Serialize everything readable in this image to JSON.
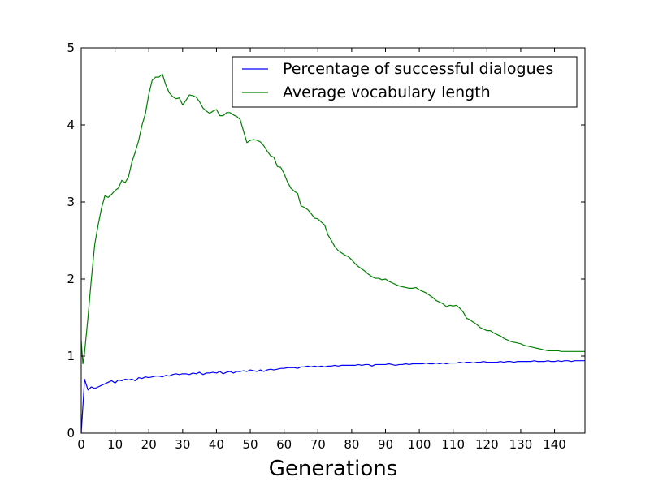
{
  "chart_data": {
    "type": "line",
    "title": "",
    "xlabel": "Generations",
    "ylabel": "",
    "xlim": [
      0,
      149
    ],
    "ylim": [
      0,
      5
    ],
    "x_ticks": [
      0,
      10,
      20,
      30,
      40,
      50,
      60,
      70,
      80,
      90,
      100,
      110,
      120,
      130,
      140
    ],
    "y_ticks": [
      0,
      1,
      2,
      3,
      4,
      5
    ],
    "grid": false,
    "legend_position": "top-right",
    "series": [
      {
        "name": "Percentage of successful dialogues",
        "color": "#0000ff",
        "points": [
          [
            0,
            0.0
          ],
          [
            1,
            0.7
          ],
          [
            2,
            0.56
          ],
          [
            3,
            0.6
          ],
          [
            4,
            0.58
          ],
          [
            5,
            0.6
          ],
          [
            6,
            0.62
          ],
          [
            7,
            0.64
          ],
          [
            8,
            0.66
          ],
          [
            9,
            0.68
          ],
          [
            10,
            0.65
          ],
          [
            11,
            0.69
          ],
          [
            12,
            0.68
          ],
          [
            13,
            0.7
          ],
          [
            14,
            0.69
          ],
          [
            15,
            0.7
          ],
          [
            16,
            0.68
          ],
          [
            17,
            0.72
          ],
          [
            18,
            0.71
          ],
          [
            19,
            0.73
          ],
          [
            20,
            0.72
          ],
          [
            21,
            0.73
          ],
          [
            22,
            0.74
          ],
          [
            23,
            0.74
          ],
          [
            24,
            0.73
          ],
          [
            25,
            0.75
          ],
          [
            26,
            0.74
          ],
          [
            27,
            0.76
          ],
          [
            28,
            0.77
          ],
          [
            29,
            0.76
          ],
          [
            30,
            0.77
          ],
          [
            31,
            0.77
          ],
          [
            32,
            0.76
          ],
          [
            33,
            0.78
          ],
          [
            34,
            0.77
          ],
          [
            35,
            0.79
          ],
          [
            36,
            0.76
          ],
          [
            37,
            0.78
          ],
          [
            38,
            0.78
          ],
          [
            39,
            0.79
          ],
          [
            40,
            0.78
          ],
          [
            41,
            0.8
          ],
          [
            42,
            0.77
          ],
          [
            43,
            0.79
          ],
          [
            44,
            0.8
          ],
          [
            45,
            0.78
          ],
          [
            46,
            0.8
          ],
          [
            47,
            0.8
          ],
          [
            48,
            0.81
          ],
          [
            49,
            0.8
          ],
          [
            50,
            0.82
          ],
          [
            51,
            0.81
          ],
          [
            52,
            0.8
          ],
          [
            53,
            0.82
          ],
          [
            54,
            0.8
          ],
          [
            55,
            0.82
          ],
          [
            56,
            0.83
          ],
          [
            57,
            0.82
          ],
          [
            58,
            0.83
          ],
          [
            59,
            0.84
          ],
          [
            60,
            0.84
          ],
          [
            61,
            0.85
          ],
          [
            62,
            0.85
          ],
          [
            63,
            0.85
          ],
          [
            64,
            0.84
          ],
          [
            65,
            0.86
          ],
          [
            66,
            0.86
          ],
          [
            67,
            0.87
          ],
          [
            68,
            0.86
          ],
          [
            69,
            0.87
          ],
          [
            70,
            0.86
          ],
          [
            71,
            0.87
          ],
          [
            72,
            0.86
          ],
          [
            73,
            0.87
          ],
          [
            74,
            0.87
          ],
          [
            75,
            0.88
          ],
          [
            76,
            0.87
          ],
          [
            77,
            0.88
          ],
          [
            78,
            0.88
          ],
          [
            79,
            0.88
          ],
          [
            80,
            0.88
          ],
          [
            81,
            0.88
          ],
          [
            82,
            0.89
          ],
          [
            83,
            0.88
          ],
          [
            84,
            0.89
          ],
          [
            85,
            0.89
          ],
          [
            86,
            0.87
          ],
          [
            87,
            0.89
          ],
          [
            88,
            0.89
          ],
          [
            89,
            0.89
          ],
          [
            90,
            0.89
          ],
          [
            91,
            0.9
          ],
          [
            92,
            0.89
          ],
          [
            93,
            0.88
          ],
          [
            94,
            0.89
          ],
          [
            95,
            0.89
          ],
          [
            96,
            0.9
          ],
          [
            97,
            0.89
          ],
          [
            98,
            0.9
          ],
          [
            99,
            0.9
          ],
          [
            100,
            0.9
          ],
          [
            101,
            0.9
          ],
          [
            102,
            0.91
          ],
          [
            103,
            0.9
          ],
          [
            104,
            0.9
          ],
          [
            105,
            0.91
          ],
          [
            106,
            0.9
          ],
          [
            107,
            0.91
          ],
          [
            108,
            0.9
          ],
          [
            109,
            0.91
          ],
          [
            110,
            0.91
          ],
          [
            111,
            0.91
          ],
          [
            112,
            0.92
          ],
          [
            113,
            0.91
          ],
          [
            114,
            0.92
          ],
          [
            115,
            0.92
          ],
          [
            116,
            0.91
          ],
          [
            117,
            0.92
          ],
          [
            118,
            0.92
          ],
          [
            119,
            0.93
          ],
          [
            120,
            0.92
          ],
          [
            121,
            0.92
          ],
          [
            122,
            0.92
          ],
          [
            123,
            0.92
          ],
          [
            124,
            0.93
          ],
          [
            125,
            0.92
          ],
          [
            126,
            0.93
          ],
          [
            127,
            0.93
          ],
          [
            128,
            0.92
          ],
          [
            129,
            0.93
          ],
          [
            130,
            0.93
          ],
          [
            131,
            0.93
          ],
          [
            132,
            0.93
          ],
          [
            133,
            0.93
          ],
          [
            134,
            0.94
          ],
          [
            135,
            0.93
          ],
          [
            136,
            0.93
          ],
          [
            137,
            0.93
          ],
          [
            138,
            0.94
          ],
          [
            139,
            0.93
          ],
          [
            140,
            0.93
          ],
          [
            141,
            0.94
          ],
          [
            142,
            0.93
          ],
          [
            143,
            0.94
          ],
          [
            144,
            0.94
          ],
          [
            145,
            0.93
          ],
          [
            146,
            0.94
          ],
          [
            147,
            0.94
          ],
          [
            148,
            0.94
          ],
          [
            149,
            0.94
          ]
        ]
      },
      {
        "name": "Average vocabulary length",
        "color": "#008000",
        "points": [
          [
            0,
            1.2
          ],
          [
            0.5,
            0.9
          ],
          [
            1,
            1.05
          ],
          [
            2,
            1.5
          ],
          [
            3,
            2.0
          ],
          [
            4,
            2.45
          ],
          [
            5,
            2.7
          ],
          [
            6,
            2.92
          ],
          [
            7,
            3.08
          ],
          [
            8,
            3.06
          ],
          [
            9,
            3.1
          ],
          [
            10,
            3.15
          ],
          [
            11,
            3.18
          ],
          [
            12,
            3.28
          ],
          [
            13,
            3.25
          ],
          [
            14,
            3.33
          ],
          [
            15,
            3.52
          ],
          [
            16,
            3.65
          ],
          [
            17,
            3.8
          ],
          [
            18,
            4.0
          ],
          [
            19,
            4.15
          ],
          [
            20,
            4.4
          ],
          [
            21,
            4.58
          ],
          [
            22,
            4.62
          ],
          [
            23,
            4.62
          ],
          [
            24,
            4.66
          ],
          [
            25,
            4.52
          ],
          [
            26,
            4.42
          ],
          [
            27,
            4.37
          ],
          [
            28,
            4.34
          ],
          [
            29,
            4.35
          ],
          [
            30,
            4.26
          ],
          [
            31,
            4.32
          ],
          [
            32,
            4.39
          ],
          [
            33,
            4.38
          ],
          [
            34,
            4.36
          ],
          [
            35,
            4.3
          ],
          [
            36,
            4.22
          ],
          [
            37,
            4.18
          ],
          [
            38,
            4.15
          ],
          [
            39,
            4.18
          ],
          [
            40,
            4.2
          ],
          [
            41,
            4.12
          ],
          [
            42,
            4.12
          ],
          [
            43,
            4.16
          ],
          [
            44,
            4.16
          ],
          [
            45,
            4.13
          ],
          [
            46,
            4.11
          ],
          [
            47,
            4.07
          ],
          [
            48,
            3.92
          ],
          [
            49,
            3.77
          ],
          [
            50,
            3.8
          ],
          [
            51,
            3.81
          ],
          [
            52,
            3.8
          ],
          [
            53,
            3.78
          ],
          [
            54,
            3.73
          ],
          [
            55,
            3.66
          ],
          [
            56,
            3.6
          ],
          [
            57,
            3.58
          ],
          [
            58,
            3.46
          ],
          [
            59,
            3.45
          ],
          [
            60,
            3.37
          ],
          [
            61,
            3.26
          ],
          [
            62,
            3.18
          ],
          [
            63,
            3.14
          ],
          [
            64,
            3.11
          ],
          [
            65,
            2.95
          ],
          [
            66,
            2.93
          ],
          [
            67,
            2.9
          ],
          [
            68,
            2.85
          ],
          [
            69,
            2.79
          ],
          [
            70,
            2.78
          ],
          [
            71,
            2.74
          ],
          [
            72,
            2.7
          ],
          [
            73,
            2.57
          ],
          [
            74,
            2.5
          ],
          [
            75,
            2.42
          ],
          [
            76,
            2.37
          ],
          [
            77,
            2.34
          ],
          [
            78,
            2.31
          ],
          [
            79,
            2.29
          ],
          [
            80,
            2.25
          ],
          [
            81,
            2.2
          ],
          [
            82,
            2.16
          ],
          [
            83,
            2.13
          ],
          [
            84,
            2.1
          ],
          [
            85,
            2.06
          ],
          [
            86,
            2.03
          ],
          [
            87,
            2.01
          ],
          [
            88,
            2.01
          ],
          [
            89,
            1.99
          ],
          [
            90,
            2.0
          ],
          [
            91,
            1.97
          ],
          [
            92,
            1.95
          ],
          [
            93,
            1.93
          ],
          [
            94,
            1.91
          ],
          [
            95,
            1.9
          ],
          [
            96,
            1.89
          ],
          [
            97,
            1.88
          ],
          [
            98,
            1.88
          ],
          [
            99,
            1.89
          ],
          [
            100,
            1.86
          ],
          [
            101,
            1.84
          ],
          [
            102,
            1.82
          ],
          [
            103,
            1.79
          ],
          [
            104,
            1.76
          ],
          [
            105,
            1.72
          ],
          [
            106,
            1.7
          ],
          [
            107,
            1.68
          ],
          [
            108,
            1.64
          ],
          [
            109,
            1.66
          ],
          [
            110,
            1.65
          ],
          [
            111,
            1.66
          ],
          [
            112,
            1.62
          ],
          [
            113,
            1.57
          ],
          [
            114,
            1.49
          ],
          [
            115,
            1.47
          ],
          [
            116,
            1.44
          ],
          [
            117,
            1.41
          ],
          [
            118,
            1.37
          ],
          [
            119,
            1.35
          ],
          [
            120,
            1.33
          ],
          [
            121,
            1.33
          ],
          [
            122,
            1.3
          ],
          [
            123,
            1.28
          ],
          [
            124,
            1.26
          ],
          [
            125,
            1.23
          ],
          [
            126,
            1.21
          ],
          [
            127,
            1.19
          ],
          [
            128,
            1.18
          ],
          [
            129,
            1.17
          ],
          [
            130,
            1.16
          ],
          [
            131,
            1.14
          ],
          [
            132,
            1.13
          ],
          [
            133,
            1.12
          ],
          [
            134,
            1.11
          ],
          [
            135,
            1.1
          ],
          [
            136,
            1.09
          ],
          [
            137,
            1.08
          ],
          [
            138,
            1.07
          ],
          [
            139,
            1.07
          ],
          [
            140,
            1.07
          ],
          [
            141,
            1.07
          ],
          [
            142,
            1.06
          ],
          [
            143,
            1.06
          ],
          [
            144,
            1.06
          ],
          [
            145,
            1.06
          ],
          [
            146,
            1.06
          ],
          [
            147,
            1.06
          ],
          [
            148,
            1.06
          ],
          [
            149,
            1.06
          ]
        ]
      }
    ]
  }
}
